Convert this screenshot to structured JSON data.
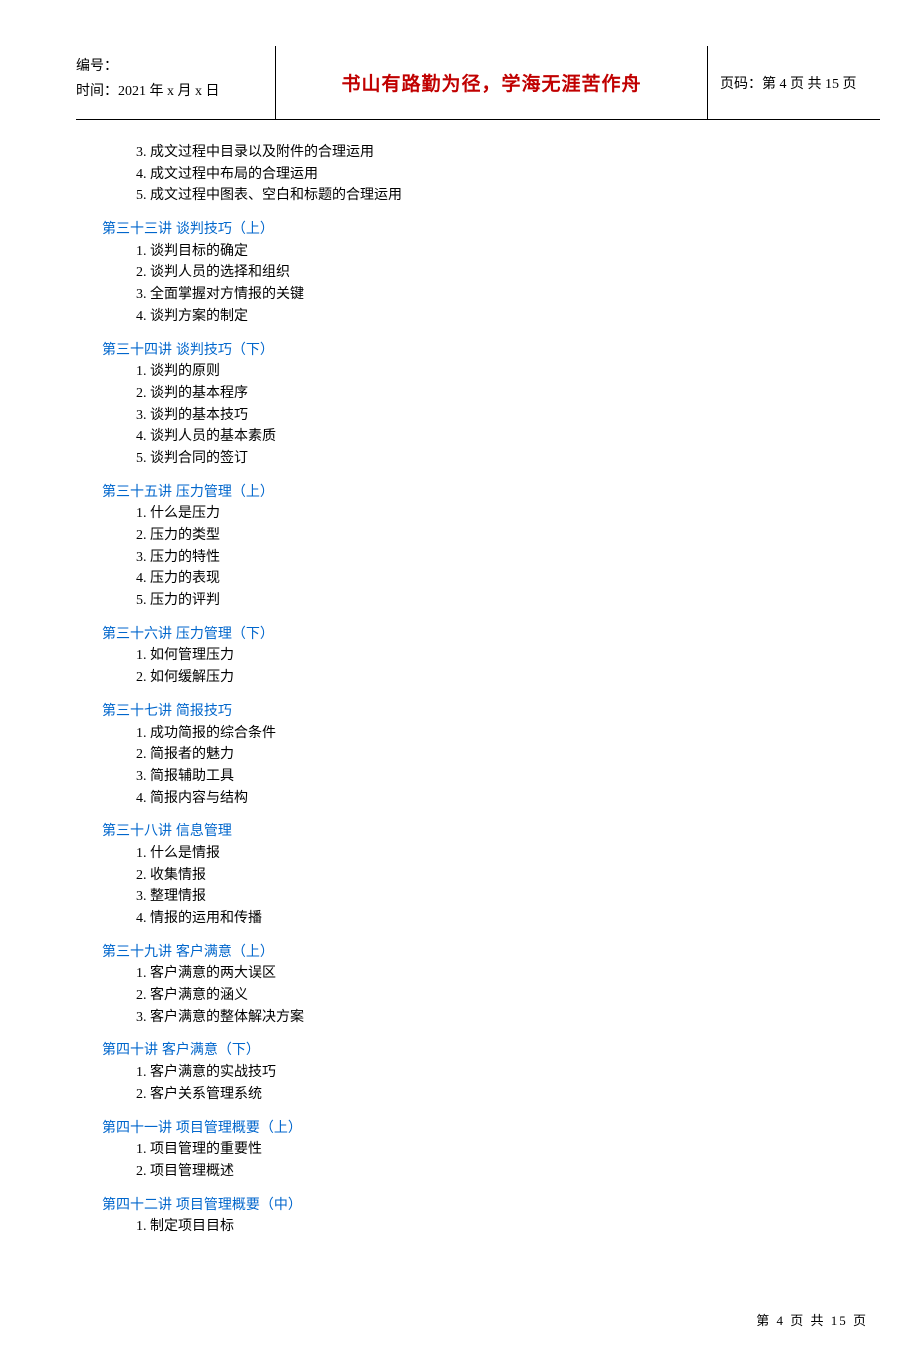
{
  "header": {
    "bianhao_label": "编号：",
    "time_label": "时间：2021 年 x 月 x 日",
    "middle_text": "书山有路勤为径，学海无涯苦作舟",
    "page_label": "页码：第 4 页 共 15 页"
  },
  "intro_items": [
    "3. 成文过程中目录以及附件的合理运用",
    "4. 成文过程中布局的合理运用",
    "5. 成文过程中图表、空白和标题的合理运用"
  ],
  "sections": [
    {
      "heading": "第三十三讲    谈判技巧（上）",
      "items": [
        "1. 谈判目标的确定",
        "2. 谈判人员的选择和组织",
        "3. 全面掌握对方情报的关键",
        "4. 谈判方案的制定"
      ]
    },
    {
      "heading": "第三十四讲   谈判技巧（下）",
      "items": [
        "1. 谈判的原则",
        "2. 谈判的基本程序",
        "3. 谈判的基本技巧",
        "4. 谈判人员的基本素质",
        "5. 谈判合同的签订"
      ]
    },
    {
      "heading": "第三十五讲   压力管理（上）",
      "items": [
        "1. 什么是压力",
        "2. 压力的类型",
        "3. 压力的特性",
        "4. 压力的表现",
        "5. 压力的评判"
      ]
    },
    {
      "heading": "第三十六讲   压力管理（下）",
      "items": [
        "1. 如何管理压力",
        "2. 如何缓解压力"
      ]
    },
    {
      "heading": "第三十七讲   简报技巧",
      "items": [
        "1. 成功简报的综合条件",
        "2. 简报者的魅力",
        "3. 简报辅助工具",
        "4. 简报内容与结构"
      ]
    },
    {
      "heading": "第三十八讲   信息管理",
      "items": [
        "1. 什么是情报",
        "2. 收集情报",
        "3. 整理情报",
        "4. 情报的运用和传播"
      ]
    },
    {
      "heading": "第三十九讲   客户满意（上）",
      "items": [
        "1. 客户满意的两大误区",
        "2. 客户满意的涵义",
        "3. 客户满意的整体解决方案"
      ]
    },
    {
      "heading": "第四十讲  客户满意（下）",
      "items": [
        "1. 客户满意的实战技巧",
        "2. 客户关系管理系统"
      ]
    },
    {
      "heading": "第四十一讲   项目管理概要（上）",
      "items": [
        "1. 项目管理的重要性",
        "2. 项目管理概述"
      ]
    },
    {
      "heading": "第四十二讲   项目管理概要（中）",
      "items": [
        "1. 制定项目目标"
      ]
    }
  ],
  "footer": "第 4 页 共 15 页",
  "colors": {
    "heading_color": "#0066cc",
    "motto_color": "#c00000",
    "text_color": "#000000",
    "background": "#ffffff"
  },
  "typography": {
    "body_font": "SimSun",
    "heading_font": "SimHei",
    "motto_font": "KaiTi",
    "body_fontsize": 14,
    "motto_fontsize": 19
  }
}
